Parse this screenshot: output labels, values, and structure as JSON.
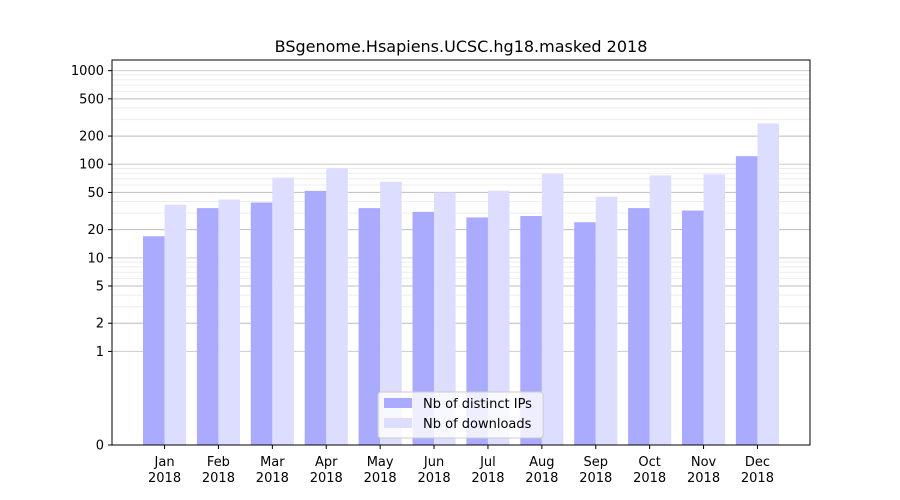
{
  "chart_data": {
    "type": "bar",
    "title": "BSgenome.Hsapiens.UCSC.hg18.masked 2018",
    "xlabel": "",
    "ylabel": "",
    "yscale": "symlog",
    "ylim": [
      0,
      1300
    ],
    "yticks": [
      0,
      1,
      2,
      5,
      10,
      20,
      50,
      100,
      200,
      500,
      1000
    ],
    "ytick_labels": [
      "0",
      "1",
      "2",
      "5",
      "10",
      "20",
      "50",
      "100",
      "200",
      "500",
      "1000"
    ],
    "grid": true,
    "legend_position": "bottom-center",
    "categories": [
      [
        "Jan",
        "2018"
      ],
      [
        "Feb",
        "2018"
      ],
      [
        "Mar",
        "2018"
      ],
      [
        "Apr",
        "2018"
      ],
      [
        "May",
        "2018"
      ],
      [
        "Jun",
        "2018"
      ],
      [
        "Jul",
        "2018"
      ],
      [
        "Aug",
        "2018"
      ],
      [
        "Sep",
        "2018"
      ],
      [
        "Oct",
        "2018"
      ],
      [
        "Nov",
        "2018"
      ],
      [
        "Dec",
        "2018"
      ]
    ],
    "series": [
      {
        "name": "Nb of distinct IPs",
        "color": "#aaaaff",
        "values": [
          17,
          34,
          39,
          52,
          34,
          31,
          27,
          28,
          24,
          34,
          32,
          122
        ]
      },
      {
        "name": "Nb of downloads",
        "color": "#ddddff",
        "values": [
          37,
          42,
          72,
          91,
          65,
          50,
          52,
          79,
          45,
          76,
          78,
          273
        ]
      }
    ]
  }
}
